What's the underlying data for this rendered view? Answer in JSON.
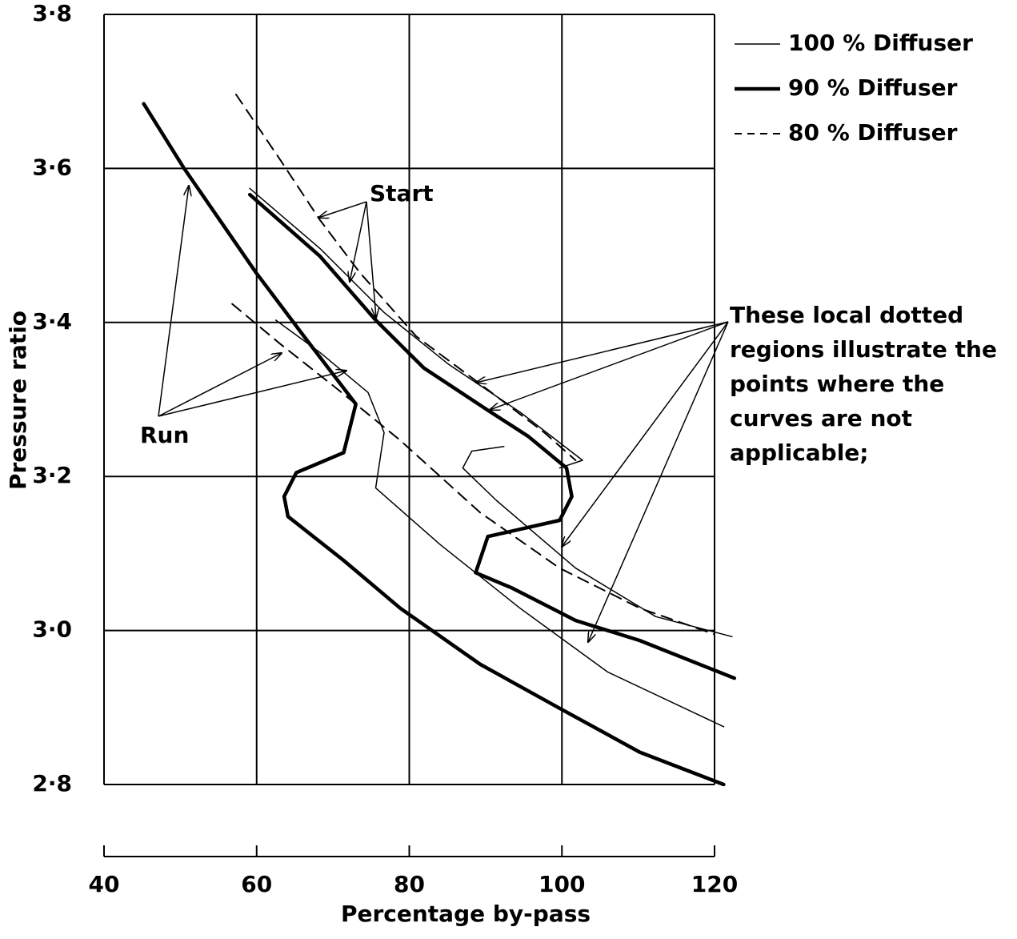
{
  "chart_data": {
    "type": "line",
    "x_label": "Percentage by-pass",
    "y_label": "Pressure ratio",
    "xlim": [
      40,
      120
    ],
    "ylim": [
      2.8,
      3.8
    ],
    "xticks": [
      40,
      60,
      80,
      100,
      120
    ],
    "yticks": [
      {
        "value": 2.8,
        "label": "2·8"
      },
      {
        "value": 3.0,
        "label": "3·0"
      },
      {
        "value": 3.2,
        "label": "3·2"
      },
      {
        "value": 3.4,
        "label": "3·4"
      },
      {
        "value": 3.6,
        "label": "3·6"
      },
      {
        "value": 3.8,
        "label": "3·8"
      }
    ],
    "grid": true,
    "legend": "top-right",
    "series": [
      {
        "name": "100 % Diffuser",
        "color": "#000000",
        "width": 1.5,
        "dash": "none",
        "x": [
          59.1,
          68.3,
          76.7,
          85.1,
          94.6,
          102.7,
          99.7,
          null,
          62.5,
          68.3,
          74.6,
          76.7,
          75.6,
          84.0,
          94.5,
          106.0,
          121.2,
          null,
          92.4,
          88.2,
          87.0,
          91.4,
          101.8,
          112.3,
          122.3
        ],
        "values": [
          3.574,
          3.496,
          3.413,
          3.346,
          3.283,
          3.221,
          3.211,
          null,
          3.403,
          3.361,
          3.309,
          3.257,
          3.185,
          3.112,
          3.029,
          2.946,
          2.875,
          null,
          3.239,
          3.233,
          3.211,
          3.169,
          3.081,
          3.018,
          2.992
        ]
      },
      {
        "name": "90 % Diffuser",
        "color": "#000000",
        "width": 4.5,
        "dash": "none",
        "x": [
          45.2,
          50.5,
          59.9,
          66.2,
          73.0,
          71.4,
          65.2,
          63.6,
          64.1,
          71.4,
          78.8,
          89.3,
          99.7,
          110.2,
          121.2,
          null,
          59.1,
          68.3,
          75.6,
          81.9,
          90.3,
          95.6,
          100.6,
          101.3,
          99.7,
          90.3,
          88.7,
          93.5,
          101.8,
          110.2,
          122.6
        ],
        "values": [
          3.684,
          3.6,
          3.465,
          3.382,
          3.294,
          3.231,
          3.205,
          3.174,
          3.148,
          3.091,
          3.029,
          2.956,
          2.899,
          2.842,
          2.8,
          null,
          3.566,
          3.486,
          3.403,
          3.341,
          3.286,
          3.252,
          3.211,
          3.174,
          3.143,
          3.122,
          3.075,
          3.055,
          3.013,
          2.987,
          2.938
        ]
      },
      {
        "name": "80 % Diffuser",
        "color": "#000000",
        "width": 2,
        "dash": "14 9",
        "x": [
          57.3,
          63.1,
          68.3,
          73.5,
          80.9,
          89.3,
          97.7,
          101.8,
          null,
          56.8,
          63.1,
          70.4,
          78.8,
          89.3,
          99.7,
          110.2,
          120.0
        ],
        "values": [
          3.696,
          3.611,
          3.533,
          3.465,
          3.382,
          3.32,
          3.257,
          3.221,
          null,
          3.424,
          3.372,
          3.315,
          3.247,
          3.153,
          3.081,
          3.029,
          2.995
        ]
      }
    ],
    "annotations": [
      {
        "text": "Start"
      },
      {
        "text": "Run"
      },
      {
        "text": [
          "These local dotted",
          "regions illustrate the",
          "points where the",
          "curves are not",
          "applicable;"
        ]
      }
    ]
  }
}
